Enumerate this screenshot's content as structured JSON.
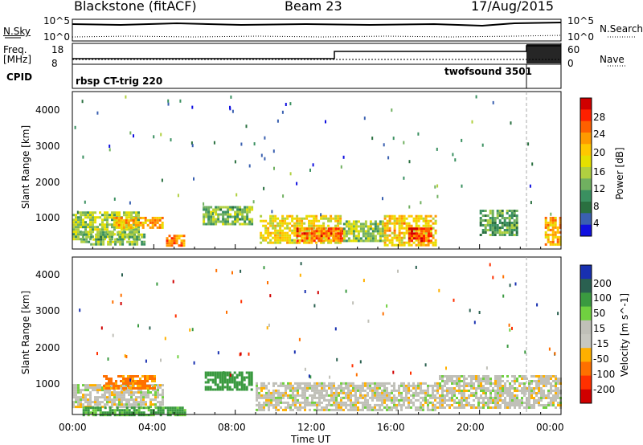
{
  "header": {
    "station": "Blackstone (fitACF)",
    "beam": "Beam 23",
    "date": "17/Aug/2015"
  },
  "top_panels": {
    "nsky_label": "N.Sky",
    "nsky_ticks": [
      "10^5",
      "10^0"
    ],
    "nsearch_label": "N.Search",
    "nsearch_ticks": [
      "10^5",
      "10^0"
    ],
    "freq_label_line1": "Freq.",
    "freq_label_line2": "[MHz]",
    "freq_ticks": [
      "18",
      "8"
    ],
    "nave_label": "Nave",
    "nave_ticks": [
      "60",
      "0"
    ],
    "cpid_label": "CPID",
    "cpid_mode_1": "rbsp CT-trig 220",
    "cpid_mode_2": "twofsound 3501"
  },
  "axes": {
    "x_ticks": [
      "00:00",
      "04:00",
      "08:00",
      "12:00",
      "16:00",
      "20:00",
      "00:00"
    ],
    "x_label": "Time UT",
    "y_ticks": [
      "1000",
      "2000",
      "3000",
      "4000"
    ],
    "y_label": "Slant Range [km]"
  },
  "power_scale": {
    "label": "Power [dB]",
    "ticks": [
      "28",
      "24",
      "20",
      "16",
      "12",
      "8",
      "4"
    ],
    "colors": [
      "#d00000",
      "#ff2000",
      "#ff6000",
      "#ff9a00",
      "#ffc800",
      "#e6e000",
      "#b0d040",
      "#70b060",
      "#3a9060",
      "#2a7040",
      "#3a60b0",
      "#1010e0"
    ]
  },
  "velocity_scale": {
    "label": "Velocity [m s^-1]",
    "ticks": [
      "200",
      "100",
      "50",
      "15",
      "-15",
      "-50",
      "-100",
      "-200"
    ],
    "colors": [
      "#1830b0",
      "#2a6050",
      "#3a9a40",
      "#70d040",
      "#c0c0b8",
      "#c8c8c0",
      "#ffb000",
      "#ff7000",
      "#ff3000",
      "#d00000"
    ]
  },
  "chart_data": [
    {
      "type": "heatmap",
      "title": "Power",
      "xlabel": "Time UT",
      "ylabel": "Slant Range [km]",
      "xlim": [
        "00:00",
        "24:00"
      ],
      "ylim": [
        200,
        4600
      ],
      "colorbar": {
        "label": "Power [dB]",
        "range": [
          0,
          32
        ]
      },
      "regions": [
        {
          "t_start": 0.0,
          "t_end": 3.2,
          "r_min": 450,
          "r_max": 1250,
          "value_db": 14
        },
        {
          "t_start": 2.0,
          "t_end": 4.4,
          "r_min": 800,
          "r_max": 1100,
          "value_db": 22
        },
        {
          "t_start": 0.4,
          "t_end": 3.5,
          "r_min": 300,
          "r_max": 700,
          "value_db": 12
        },
        {
          "t_start": 4.6,
          "t_end": 5.5,
          "r_min": 300,
          "r_max": 600,
          "value_db": 24
        },
        {
          "t_start": 6.4,
          "t_end": 8.8,
          "r_min": 900,
          "r_max": 1400,
          "value_db": 12
        },
        {
          "t_start": 9.2,
          "t_end": 13.2,
          "r_min": 350,
          "r_max": 1150,
          "value_db": 18
        },
        {
          "t_start": 11.0,
          "t_end": 13.3,
          "r_min": 400,
          "r_max": 800,
          "value_db": 26
        },
        {
          "t_start": 13.3,
          "t_end": 15.3,
          "r_min": 400,
          "r_max": 1000,
          "value_db": 14
        },
        {
          "t_start": 15.3,
          "t_end": 17.8,
          "r_min": 300,
          "r_max": 1150,
          "value_db": 20
        },
        {
          "t_start": 16.5,
          "t_end": 17.6,
          "r_min": 400,
          "r_max": 800,
          "value_db": 28
        },
        {
          "t_start": 20.0,
          "t_end": 21.8,
          "r_min": 600,
          "r_max": 1300,
          "value_db": 10
        },
        {
          "t_start": 23.2,
          "t_end": 24.0,
          "r_min": 350,
          "r_max": 1100,
          "value_db": 22
        }
      ]
    },
    {
      "type": "heatmap",
      "title": "Velocity",
      "xlabel": "Time UT",
      "ylabel": "Slant Range [km]",
      "xlim": [
        "00:00",
        "24:00"
      ],
      "ylim": [
        200,
        4600
      ],
      "colorbar": {
        "label": "Velocity [m s^-1]",
        "range": [
          -200,
          200
        ]
      },
      "regions": [
        {
          "t_start": 0.0,
          "t_end": 4.5,
          "r_min": 400,
          "r_max": 1050,
          "value_ms": 0
        },
        {
          "t_start": 0.5,
          "t_end": 5.5,
          "r_min": 200,
          "r_max": 420,
          "value_ms": 40
        },
        {
          "t_start": 1.5,
          "t_end": 4.0,
          "r_min": 900,
          "r_max": 1300,
          "value_ms": -60
        },
        {
          "t_start": 6.5,
          "t_end": 8.8,
          "r_min": 900,
          "r_max": 1400,
          "value_ms": 50
        },
        {
          "t_start": 9.0,
          "t_end": 18.0,
          "r_min": 350,
          "r_max": 1100,
          "value_ms": 0
        },
        {
          "t_start": 18.0,
          "t_end": 24.0,
          "r_min": 400,
          "r_max": 1300,
          "value_ms": 0
        }
      ]
    }
  ]
}
